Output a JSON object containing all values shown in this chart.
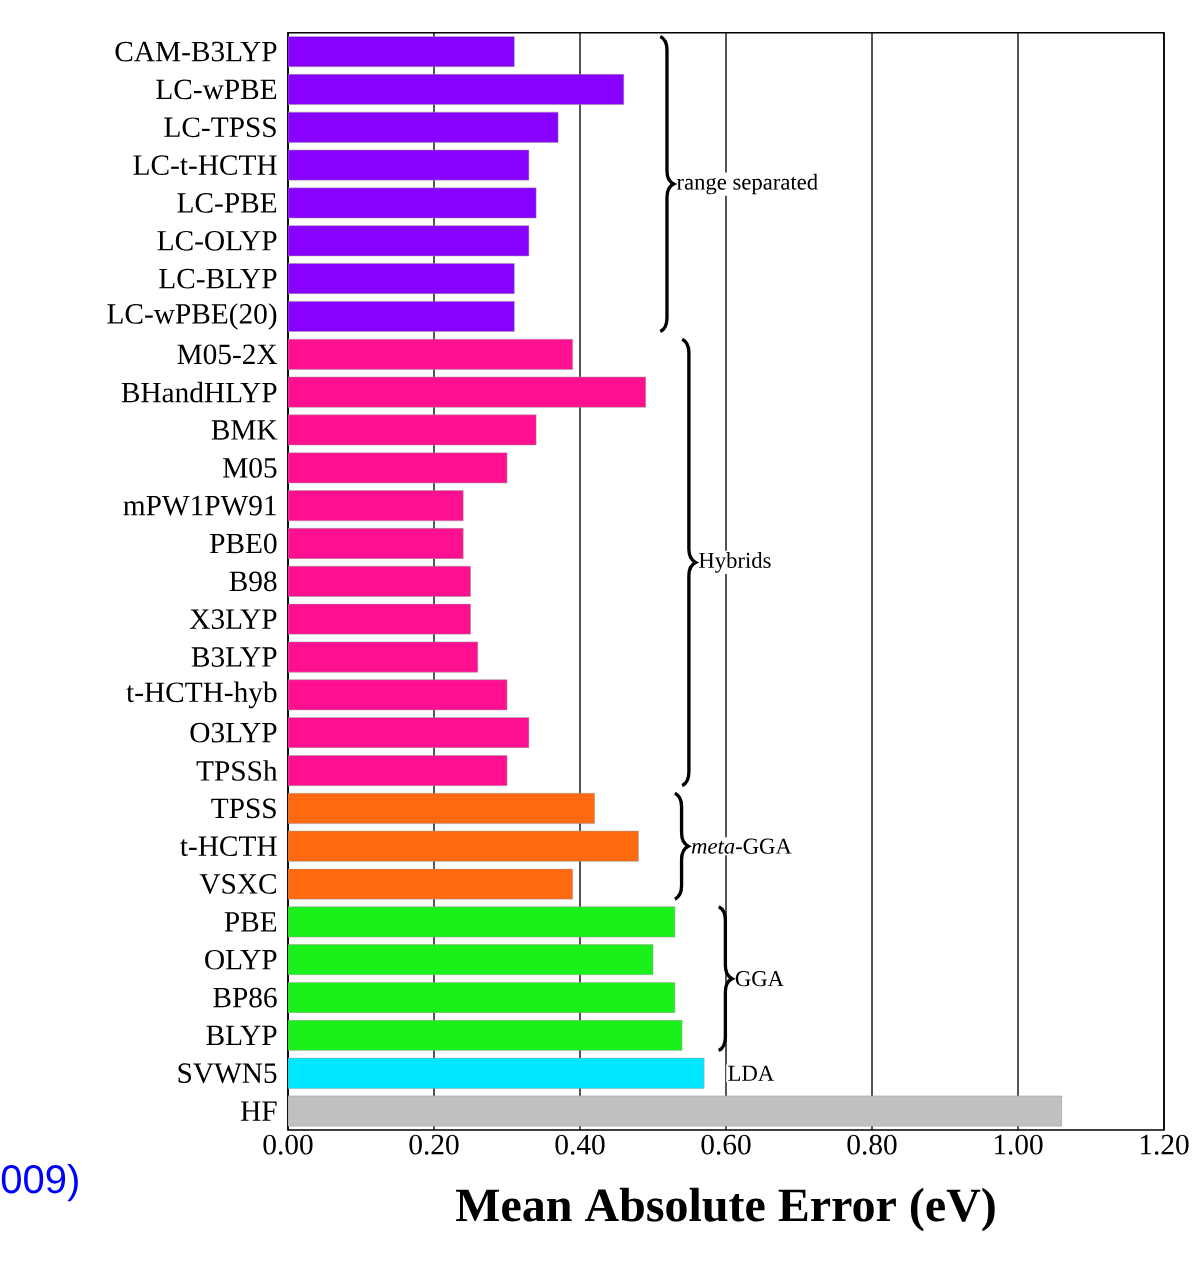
{
  "chart_data": {
    "type": "bar",
    "orientation": "horizontal",
    "categories": [
      "CAM-B3LYP",
      "LC-wPBE",
      "LC-TPSS",
      "LC-t-HCTH",
      "LC-PBE",
      "LC-OLYP",
      "LC-BLYP",
      "LC-wPBE(20)",
      "M05-2X",
      "BHandHLYP",
      "BMK",
      "M05",
      "mPW1PW91",
      "PBE0",
      "B98",
      "X3LYP",
      "B3LYP",
      "t-HCTH-hyb",
      "O3LYP",
      "TPSSh",
      "TPSS",
      "t-HCTH",
      "VSXC",
      "PBE",
      "OLYP",
      "BP86",
      "BLYP",
      "SVWN5",
      "HF"
    ],
    "values": [
      0.31,
      0.46,
      0.37,
      0.33,
      0.34,
      0.33,
      0.31,
      0.31,
      0.39,
      0.49,
      0.34,
      0.3,
      0.24,
      0.24,
      0.25,
      0.25,
      0.26,
      0.3,
      0.33,
      0.3,
      0.42,
      0.48,
      0.39,
      0.53,
      0.5,
      0.53,
      0.54,
      0.57,
      1.06
    ],
    "colors": [
      "#8800ff",
      "#8800ff",
      "#8800ff",
      "#8800ff",
      "#8800ff",
      "#8800ff",
      "#8800ff",
      "#8800ff",
      "#ff1090",
      "#ff1090",
      "#ff1090",
      "#ff1090",
      "#ff1090",
      "#ff1090",
      "#ff1090",
      "#ff1090",
      "#ff1090",
      "#ff1090",
      "#ff1090",
      "#ff1090",
      "#ff6a10",
      "#ff6a10",
      "#ff6a10",
      "#1af01a",
      "#1af01a",
      "#1af01a",
      "#1af01a",
      "#00e8ff",
      "#c0c0c0"
    ],
    "xlim": [
      0,
      1.2
    ],
    "xticks": [
      {
        "value": 0,
        "label": "0.00"
      },
      {
        "value": 0.2,
        "label": "0.20"
      },
      {
        "value": 0.4,
        "label": "0.40"
      },
      {
        "value": 0.6,
        "label": "0.60"
      },
      {
        "value": 0.8,
        "label": "0.80"
      },
      {
        "value": 1.0,
        "label": "1.00"
      },
      {
        "value": 1.2,
        "label": "1.20"
      }
    ],
    "grid": "x",
    "xlabel": "Mean Absolute Error (eV)",
    "annotations": [
      "range separated",
      "Hybrids",
      "*meta*-GGA",
      "GGA",
      "LDA",
      "009)"
    ]
  }
}
